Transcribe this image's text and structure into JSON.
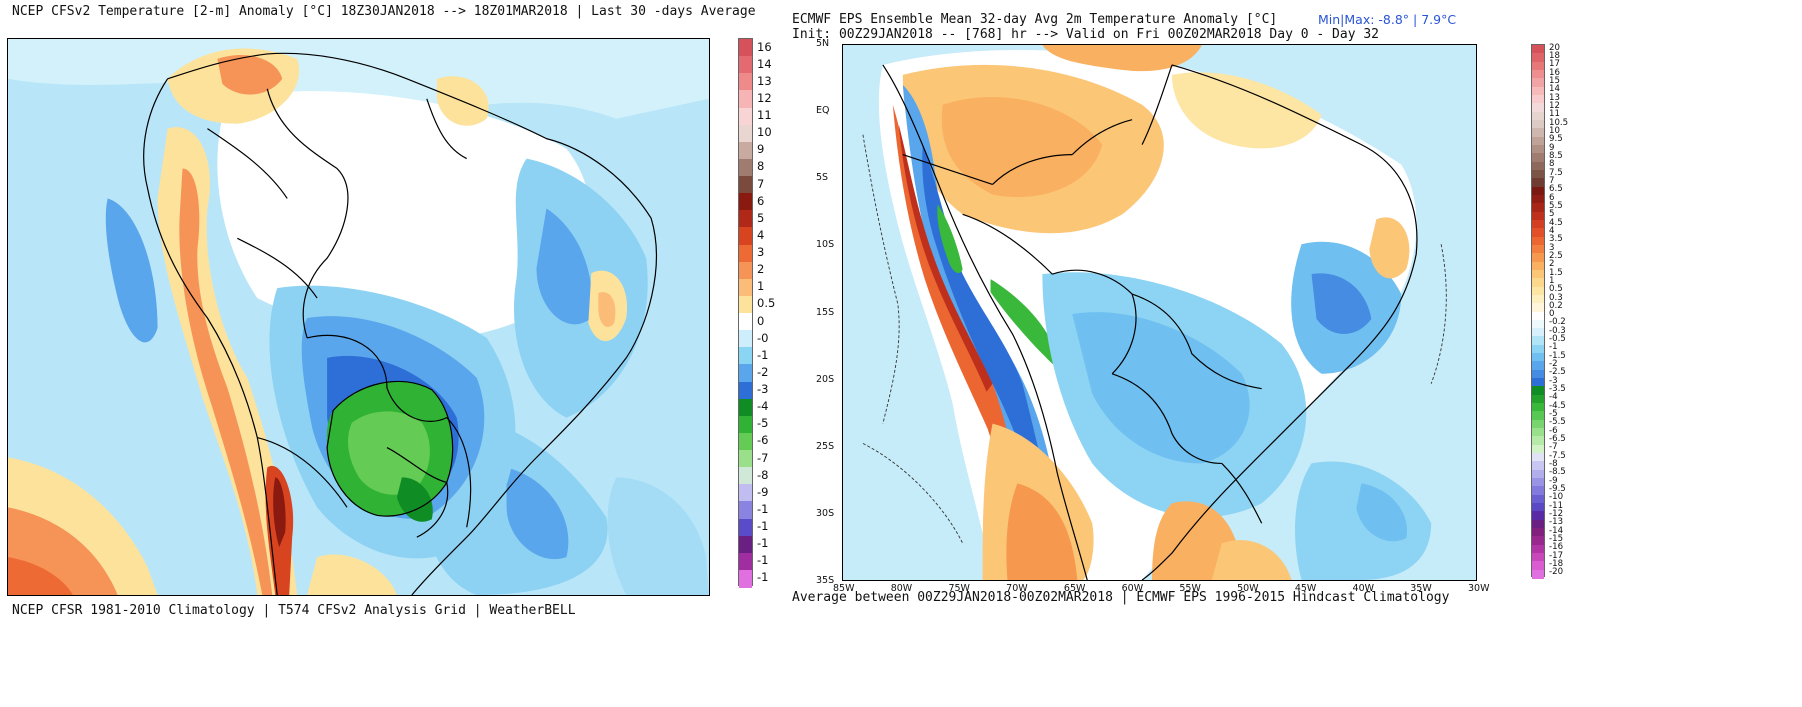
{
  "left_panel": {
    "title": "NCEP CFSv2 Temperature [2-m] Anomaly  [°C] 18Z30JAN2018 --> 18Z01MAR2018 | Last 30 -days Average",
    "footer": "NCEP CFSR 1981-2010 Climatology | T574 CFSv2 Analysis Grid | WeatherBELL",
    "colorbar_labels": [
      "16",
      "14",
      "13",
      "12",
      "11",
      "10",
      "9",
      "8",
      "7",
      "6",
      "5",
      "4",
      "3",
      "2",
      "1",
      "0.5",
      "0",
      "-0",
      "-1",
      "-2",
      "-3",
      "-4",
      "-5",
      "-6",
      "-7",
      "-8",
      "-9",
      "-1",
      "-1",
      "-1",
      "-1",
      "-1"
    ],
    "colorbar_colors": [
      "#d6525a",
      "#e36a70",
      "#ef8a8a",
      "#f6b4b4",
      "#f8d4d4",
      "#ead6d0",
      "#c9aaa0",
      "#a07c70",
      "#7a4a3c",
      "#8a1a10",
      "#b02818",
      "#d84420",
      "#ee6a34",
      "#f69458",
      "#fbbc78",
      "#fde29c",
      "#ffffff",
      "#cdeefa",
      "#8ad4f4",
      "#5aa6ec",
      "#2d6fd6",
      "#0f8c24",
      "#30b234",
      "#64cc54",
      "#9ae08a",
      "#cfe8d8",
      "#c2bdf0",
      "#8a84e0",
      "#5a4cc8",
      "#6a1f82",
      "#a02ea0",
      "#e070e0"
    ]
  },
  "right_panel": {
    "title": "ECMWF EPS Ensemble Mean 32-day Avg 2m Temperature Anomaly [°C]",
    "minmax": "Min|Max: -8.8° | 7.9°C",
    "init_line": "Init: 00Z29JAN2018 -- [768] hr --> Valid on Fri 00Z02MAR2018  Day 0 - Day 32",
    "footer": "Average between 00Z29JAN2018-00Z02MAR2018 | ECMWF EPS 1996-2015 Hindcast Climatology",
    "lat_ticks": [
      "5N",
      "EQ",
      "5S",
      "10S",
      "15S",
      "20S",
      "25S",
      "30S",
      "35S"
    ],
    "lon_ticks": [
      "85W",
      "80W",
      "75W",
      "70W",
      "65W",
      "60W",
      "55W",
      "50W",
      "45W",
      "40W",
      "35W",
      "30W"
    ],
    "colorbar_labels": [
      "20",
      "18",
      "17",
      "16",
      "15",
      "14",
      "13",
      "12",
      "11",
      "10.5",
      "10",
      "9.5",
      "9",
      "8.5",
      "8",
      "7.5",
      "7",
      "6.5",
      "6",
      "5.5",
      "5",
      "4.5",
      "4",
      "3.5",
      "3",
      "2.5",
      "2",
      "1.5",
      "1",
      "0.5",
      "0.3",
      "0.2",
      "0",
      "-0.2",
      "-0.3",
      "-0.5",
      "-1",
      "-1.5",
      "-2",
      "-2.5",
      "-3",
      "-3.5",
      "-4",
      "-4.5",
      "-5",
      "-5.5",
      "-6",
      "-6.5",
      "-7",
      "-7.5",
      "-8",
      "-8.5",
      "-9",
      "-9.5",
      "-10",
      "-11",
      "-12",
      "-13",
      "-14",
      "-15",
      "-16",
      "-17",
      "-18",
      "-20"
    ],
    "colorbar_colors": [
      "#d6525a",
      "#df6468",
      "#e77878",
      "#ee8e8e",
      "#f2a4a4",
      "#f6baba",
      "#f8cccc",
      "#f2dada",
      "#e6d4cf",
      "#dccac4",
      "#cdb7ae",
      "#bfa398",
      "#b09084",
      "#a07c70",
      "#8e685a",
      "#7c5446",
      "#6e3c30",
      "#7a1812",
      "#901e14",
      "#a82618",
      "#bf301c",
      "#d43e22",
      "#e2502a",
      "#ec6632",
      "#f27e40",
      "#f6984e",
      "#f9b060",
      "#fbc676",
      "#fcd88c",
      "#fde6a4",
      "#fdefc0",
      "#fff6dc",
      "#ffffff",
      "#eef9fd",
      "#d6f1fb",
      "#b2e4f7",
      "#8dd4f4",
      "#6fbff0",
      "#5aa6ec",
      "#468ce2",
      "#2d6fd6",
      "#0f8c24",
      "#22a22c",
      "#3ab83c",
      "#58c854",
      "#78d46e",
      "#98e08c",
      "#b6eaa8",
      "#d2f2c8",
      "#e0e2f6",
      "#cac6f2",
      "#b2aeec",
      "#9a94e4",
      "#827adc",
      "#6a60d2",
      "#5a48c4",
      "#5a2aa6",
      "#6a1f82",
      "#82207e",
      "#98288e",
      "#b034a4",
      "#c848bc",
      "#d95cd0",
      "#e070e0"
    ]
  }
}
